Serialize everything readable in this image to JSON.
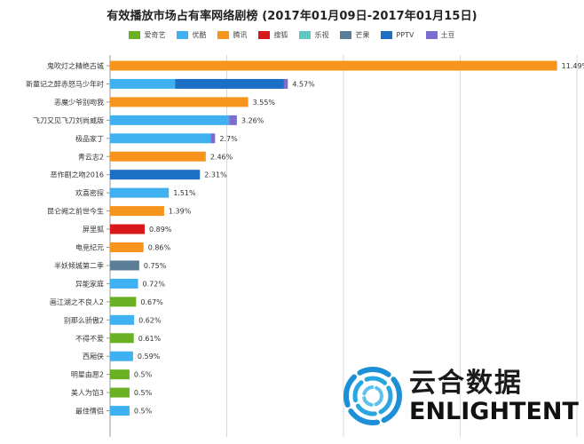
{
  "chart_data": {
    "type": "bar",
    "orientation": "horizontal",
    "title": "有效播放市场占有率网络剧榜 (2017年01月09日-2017年01月15日)",
    "legend": [
      {
        "name": "爱奇艺",
        "color": "#6ab023"
      },
      {
        "name": "优酷",
        "color": "#3fb0f0"
      },
      {
        "name": "腾讯",
        "color": "#f7941d"
      },
      {
        "name": "搜狐",
        "color": "#d7191c"
      },
      {
        "name": "乐视",
        "color": "#5fc8c0"
      },
      {
        "name": "芒果",
        "color": "#5b7e96"
      },
      {
        "name": "PPTV",
        "color": "#1c6fc4"
      },
      {
        "name": "土豆",
        "color": "#7a6fd0"
      }
    ],
    "xlim": [
      0,
      12
    ],
    "grid": "vertical",
    "rows": [
      {
        "label": "鬼吹灯之精绝古城",
        "value_label": "11.49%",
        "segments": [
          {
            "platform": "腾讯",
            "value": 11.49
          }
        ]
      },
      {
        "label": "新童记之醉赤怒马少年时",
        "value_label": "4.57%",
        "segments": [
          {
            "platform": "优酷",
            "value": 1.67
          },
          {
            "platform": "PPTV",
            "value": 2.8
          },
          {
            "platform": "土豆",
            "value": 0.1
          }
        ]
      },
      {
        "label": "恶魔少爷别吻我",
        "value_label": "3.55%",
        "segments": [
          {
            "platform": "腾讯",
            "value": 3.55
          }
        ]
      },
      {
        "label": "飞刀又见飞刀刘尚威版",
        "value_label": "3.26%",
        "segments": [
          {
            "platform": "优酷",
            "value": 3.06
          },
          {
            "platform": "土豆",
            "value": 0.2
          }
        ]
      },
      {
        "label": "极品家丁",
        "value_label": "2.7%",
        "segments": [
          {
            "platform": "优酷",
            "value": 2.59
          },
          {
            "platform": "土豆",
            "value": 0.11
          }
        ]
      },
      {
        "label": "青云志2",
        "value_label": "2.46%",
        "segments": [
          {
            "platform": "腾讯",
            "value": 2.46
          }
        ]
      },
      {
        "label": "恶作剧之吻2016",
        "value_label": "2.31%",
        "segments": [
          {
            "platform": "PPTV",
            "value": 2.31
          }
        ]
      },
      {
        "label": "欢喜密探",
        "value_label": "1.51%",
        "segments": [
          {
            "platform": "优酷",
            "value": 1.51
          }
        ]
      },
      {
        "label": "昆仑阙之前世今生",
        "value_label": "1.39%",
        "segments": [
          {
            "platform": "腾讯",
            "value": 1.39
          }
        ]
      },
      {
        "label": "屏里狐",
        "value_label": "0.89%",
        "segments": [
          {
            "platform": "搜狐",
            "value": 0.89
          }
        ]
      },
      {
        "label": "电竞纪元",
        "value_label": "0.86%",
        "segments": [
          {
            "platform": "腾讯",
            "value": 0.86
          }
        ]
      },
      {
        "label": "半妖倾城第二季",
        "value_label": "0.75%",
        "segments": [
          {
            "platform": "芒果",
            "value": 0.75
          }
        ]
      },
      {
        "label": "异能家庭",
        "value_label": "0.72%",
        "segments": [
          {
            "platform": "优酷",
            "value": 0.72
          }
        ]
      },
      {
        "label": "画江湖之不良人2",
        "value_label": "0.67%",
        "segments": [
          {
            "platform": "爱奇艺",
            "value": 0.67
          }
        ]
      },
      {
        "label": "别那么骄傲2",
        "value_label": "0.62%",
        "segments": [
          {
            "platform": "优酷",
            "value": 0.62
          }
        ]
      },
      {
        "label": "不得不爱",
        "value_label": "0.61%",
        "segments": [
          {
            "platform": "爱奇艺",
            "value": 0.61
          }
        ]
      },
      {
        "label": "西厢侠",
        "value_label": "0.59%",
        "segments": [
          {
            "platform": "优酷",
            "value": 0.59
          }
        ]
      },
      {
        "label": "明星由愿2",
        "value_label": "0.5%",
        "segments": [
          {
            "platform": "爱奇艺",
            "value": 0.5
          }
        ]
      },
      {
        "label": "美人为馅3",
        "value_label": "0.5%",
        "segments": [
          {
            "platform": "爱奇艺",
            "value": 0.5
          }
        ]
      },
      {
        "label": "最佳情侣",
        "value_label": "0.5%",
        "segments": [
          {
            "platform": "优酷",
            "value": 0.5
          }
        ]
      }
    ]
  },
  "watermark": {
    "brand_cn": "云合数据",
    "brand_en": "ENLIGHTENT"
  }
}
